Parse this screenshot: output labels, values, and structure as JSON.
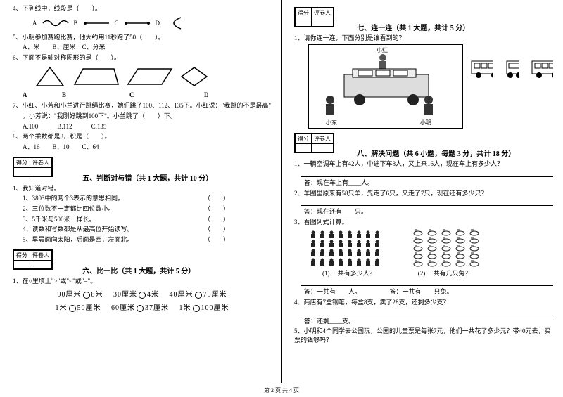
{
  "footer": "第 2 页  共 4 页",
  "left": {
    "q4": "4、下列线中，线段是（　　）。",
    "q4_opts": {
      "A": "A",
      "B": "B",
      "C": "C",
      "D": "D"
    },
    "q5": "5、小明参加赛跑比赛，他大约用11秒跑了50（　　）。",
    "q5_opts": "A、米　　B、厘米　C、分米",
    "q6": "6、下面不是轴对称图形的是（　　）。",
    "q6_opts": {
      "A": "A",
      "B": "B",
      "C": "C",
      "D": "D"
    },
    "q7a": "7、小红、小芳和小兰进行跳绳比赛，她们跳了100、112、135下。小红说：\"我跳的不是最高\"",
    "q7b": "。小芳说：\"我刚好跳到100下\"。小兰跳了（　　）下。",
    "q7_opts": "A.100　　　B.112　　　C.135",
    "q8": "8、两个乘数都是8，积是（　　）。",
    "q8_opts": "A、16　　B、10　　C、64",
    "score_labels": {
      "a": "得分",
      "b": "评卷人"
    },
    "sec5_title": "五、判断对与错（共 1 大题，共计 10 分）",
    "sec5_lead": "1、我知道对错。",
    "sec5_items": [
      "1、3803中的两个3表示的意思相同。",
      "2、三位数不一定都比四位数小。",
      "3、5千米与500米一样长。",
      "4、读数和写数都是从最高位开始读写。",
      "5、早晨面向太阳，后面是西，左面北。"
    ],
    "sec6_title": "六、比一比（共 1 大题，共计 5 分）",
    "sec6_lead": "1、在○里填上\">\"或\"<\"或\"=\"。",
    "compare_row1": [
      "90厘米",
      "8米",
      "30厘米",
      "4米",
      "40厘米",
      "75厘米"
    ],
    "compare_row2": [
      "1米",
      "50厘米",
      "60厘米",
      "37厘米",
      "1米",
      "100厘米"
    ]
  },
  "right": {
    "score_labels": {
      "a": "得分",
      "b": "评卷人"
    },
    "sec7_title": "七、连一连（共 1 大题，共计 5 分）",
    "sec7_q": "1、请你连一连，下面分别是谁看到的？",
    "scene_labels": {
      "top": "小红",
      "left": "小东",
      "right": "小明"
    },
    "sec8_title": "八、解决问题（共 6 小题，每题 3 分，共计 18 分）",
    "q1": "1、一辆空调车上有42人，中途下车8人，又上来16人，现在车上有多少人？",
    "q1_ans": "答：现在车上有____人。",
    "q2": "2、羊圈里原来有58只羊，先走了6只，又走了7只，现在还有多少只？",
    "q2_ans": "答：现在还有____只。",
    "q3": "3、看图列式计算。",
    "q3_sub": {
      "a": "(1) 一共有多少人？",
      "b": "(2) 一共有几只兔？"
    },
    "q3_ans": "答：一共有____人。　　　　　答：一共有____只兔。",
    "q4": "4、商店有7盒钢笔，每盒8支，卖了28支，还剩多少支？",
    "q4_ans": "答：还剩____支。",
    "q5": "5、小明和4个同学去公园玩，公园的儿童票是每张7元，他们一共花了多少元？带40元去，买票的钱够吗？"
  },
  "colors": {
    "text": "#000000",
    "bg": "#ffffff"
  }
}
